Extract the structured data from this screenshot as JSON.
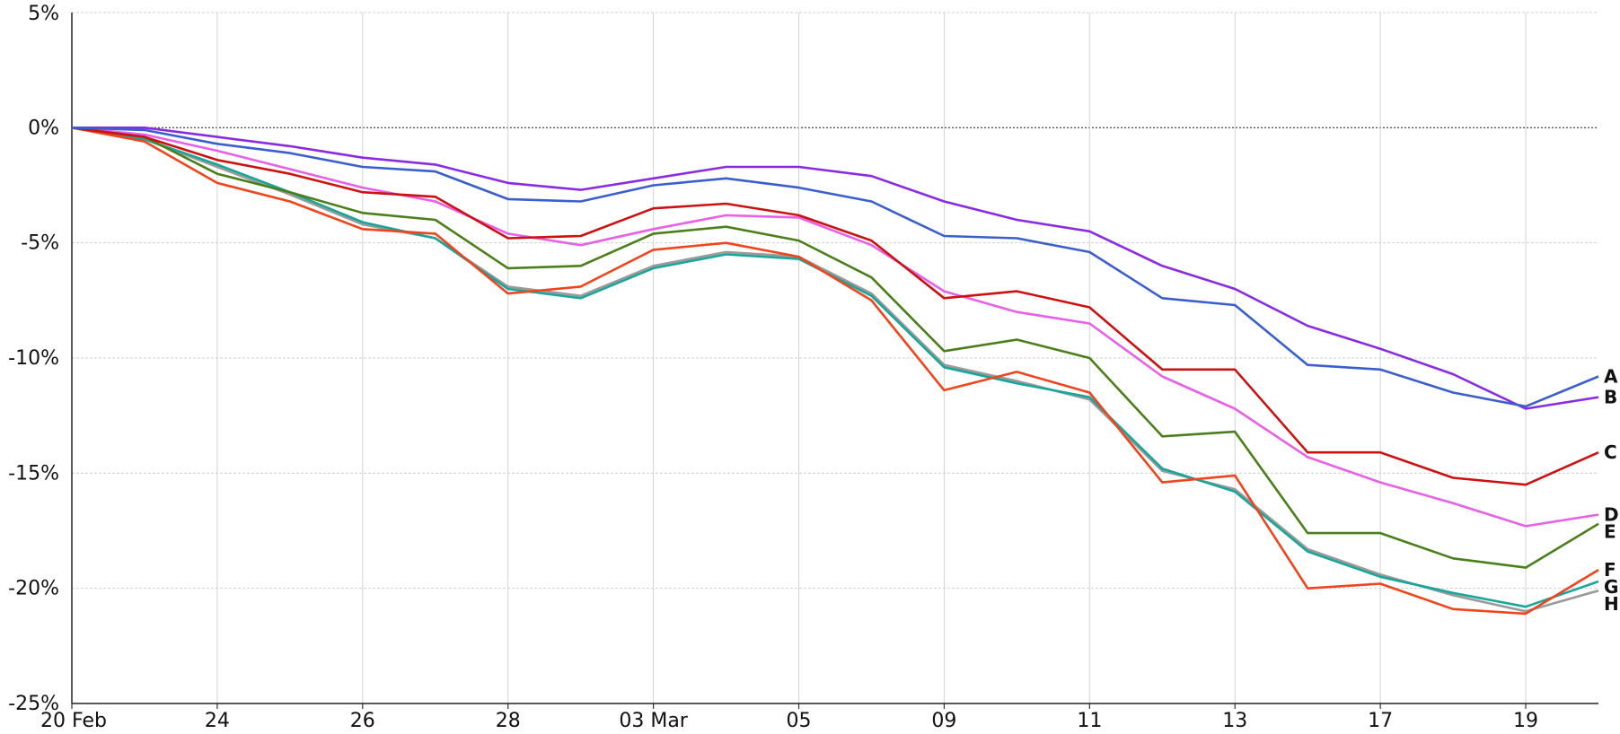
{
  "chart_data": {
    "type": "line",
    "title": "",
    "xlabel": "",
    "ylabel": "",
    "ylim": [
      -25,
      5
    ],
    "y_ticks": [
      5,
      0,
      -5,
      -10,
      -15,
      -20,
      -25
    ],
    "y_tick_labels": [
      "5%",
      "0%",
      "-5%",
      "-10%",
      "-15%",
      "-20%",
      "-25%"
    ],
    "grid": true,
    "zero_line": "dotted",
    "x": [
      "20 Feb",
      "21 Feb",
      "24 Feb",
      "25 Feb",
      "26 Feb",
      "27 Feb",
      "28 Feb",
      "29 Feb",
      "03 Mar",
      "04 Mar",
      "05 Mar",
      "06 Mar",
      "09 Mar",
      "10 Mar",
      "11 Mar",
      "12 Mar",
      "13 Mar",
      "16 Mar",
      "17 Mar",
      "18 Mar",
      "19 Mar",
      "20 Mar"
    ],
    "x_tick_labels": [
      {
        "index": 0,
        "label": "20 Feb"
      },
      {
        "index": 2,
        "label": "24"
      },
      {
        "index": 4,
        "label": "26"
      },
      {
        "index": 6,
        "label": "28"
      },
      {
        "index": 8,
        "label": "03 Mar"
      },
      {
        "index": 10,
        "label": "05"
      },
      {
        "index": 12,
        "label": "09"
      },
      {
        "index": 14,
        "label": "11"
      },
      {
        "index": 16,
        "label": "13"
      },
      {
        "index": 18,
        "label": "17"
      },
      {
        "index": 20,
        "label": "19"
      }
    ],
    "series": [
      {
        "name": "A",
        "color": "#3a5fcd",
        "values": [
          0,
          -0.1,
          -0.7,
          -1.1,
          -1.7,
          -1.9,
          -3.1,
          -3.2,
          -2.5,
          -2.2,
          -2.6,
          -3.2,
          -4.7,
          -4.8,
          -5.4,
          -7.4,
          -7.7,
          -10.3,
          -10.5,
          -11.5,
          -12.1,
          -10.8
        ]
      },
      {
        "name": "B",
        "color": "#8a2be2",
        "values": [
          0,
          0.0,
          -0.4,
          -0.8,
          -1.3,
          -1.6,
          -2.4,
          -2.7,
          -2.2,
          -1.7,
          -1.7,
          -2.1,
          -3.2,
          -4.0,
          -4.5,
          -6.0,
          -7.0,
          -8.6,
          -9.6,
          -10.7,
          -12.2,
          -11.7
        ]
      },
      {
        "name": "C",
        "color": "#cc1111",
        "values": [
          0,
          -0.4,
          -1.4,
          -2.0,
          -2.8,
          -3.0,
          -4.8,
          -4.7,
          -3.5,
          -3.3,
          -3.8,
          -4.9,
          -7.4,
          -7.1,
          -7.8,
          -10.5,
          -10.5,
          -14.1,
          -14.1,
          -15.2,
          -15.5,
          -14.1
        ]
      },
      {
        "name": "D",
        "color": "#e860e8",
        "values": [
          0,
          -0.3,
          -1.0,
          -1.8,
          -2.6,
          -3.2,
          -4.6,
          -5.1,
          -4.4,
          -3.8,
          -3.9,
          -5.1,
          -7.1,
          -8.0,
          -8.5,
          -10.8,
          -12.2,
          -14.3,
          -15.4,
          -16.3,
          -17.3,
          -16.8
        ]
      },
      {
        "name": "E",
        "color": "#4a7f1a",
        "values": [
          0,
          -0.4,
          -2.0,
          -2.8,
          -3.7,
          -4.0,
          -6.1,
          -6.0,
          -4.6,
          -4.3,
          -4.9,
          -6.5,
          -9.7,
          -9.2,
          -10.0,
          -13.4,
          -13.2,
          -17.6,
          -17.6,
          -18.7,
          -19.1,
          -17.2
        ]
      },
      {
        "name": "F",
        "color": "#f0441c",
        "values": [
          0,
          -0.6,
          -2.4,
          -3.2,
          -4.4,
          -4.6,
          -7.2,
          -6.9,
          -5.3,
          -5.0,
          -5.6,
          -7.5,
          -11.4,
          -10.6,
          -11.5,
          -15.4,
          -15.1,
          -20.0,
          -19.8,
          -20.9,
          -21.1,
          -19.2
        ]
      },
      {
        "name": "G",
        "color": "#1aa59a",
        "values": [
          0,
          -0.5,
          -1.6,
          -2.8,
          -4.1,
          -4.8,
          -7.0,
          -7.4,
          -6.1,
          -5.5,
          -5.7,
          -7.3,
          -10.4,
          -11.1,
          -11.7,
          -14.8,
          -15.8,
          -18.4,
          -19.5,
          -20.2,
          -20.8,
          -19.7
        ]
      },
      {
        "name": "H",
        "color": "#9a9a9a",
        "values": [
          0,
          -0.5,
          -1.7,
          -2.9,
          -4.2,
          -4.8,
          -6.9,
          -7.3,
          -6.0,
          -5.4,
          -5.6,
          -7.2,
          -10.3,
          -11.0,
          -11.8,
          -14.9,
          -15.7,
          -18.3,
          -19.4,
          -20.3,
          -21.0,
          -20.1
        ]
      }
    ],
    "series_labels": [
      "A",
      "B",
      "C",
      "D",
      "E",
      "F",
      "G",
      "H"
    ]
  }
}
